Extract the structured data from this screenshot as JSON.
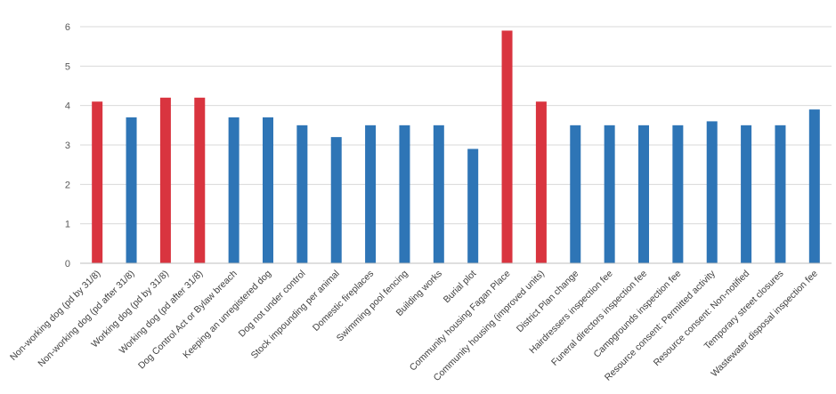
{
  "chart_data": {
    "type": "bar",
    "title": "",
    "xlabel": "",
    "ylabel": "",
    "ylim": [
      0,
      6
    ],
    "yticks": [
      0,
      1,
      2,
      3,
      4,
      5,
      6
    ],
    "grid": true,
    "legend": "none",
    "categories": [
      "Non-working dog (pd by 31/8)",
      "Non-working dog (pd after 31/8)",
      "Working dog (pd by 31/8)",
      "Working dog (pd after 31/8)",
      "Dog Control Act or Bylaw breach",
      "Keeping an unregistered dog",
      "Dog not under control",
      "Stock impounding per animal",
      "Domestic fireplaces",
      "Swimming pool fencing",
      "Building works",
      "Burial plot",
      "Community housing Fagan Place",
      "Community housing (improved units)",
      "District Plan change",
      "Hairdressers inspection fee",
      "Funeral directors inspection fee",
      "Campgrounds inspection fee",
      "Resource consent: Permitted activity",
      "Resource consent: Non-notified",
      "Temporary street closures",
      "Wastewater disposal inspection fee"
    ],
    "values": [
      4.1,
      3.7,
      4.2,
      4.2,
      3.7,
      3.7,
      3.5,
      3.2,
      3.5,
      3.5,
      3.5,
      2.9,
      5.9,
      4.1,
      3.5,
      3.5,
      3.5,
      3.5,
      3.6,
      3.5,
      3.5,
      3.9
    ],
    "highlight": [
      true,
      false,
      true,
      true,
      false,
      false,
      false,
      false,
      false,
      false,
      false,
      false,
      true,
      true,
      false,
      false,
      false,
      false,
      false,
      false,
      false,
      false
    ],
    "colors": {
      "normal": "#2e75b6",
      "highlight": "#d9343f"
    }
  }
}
